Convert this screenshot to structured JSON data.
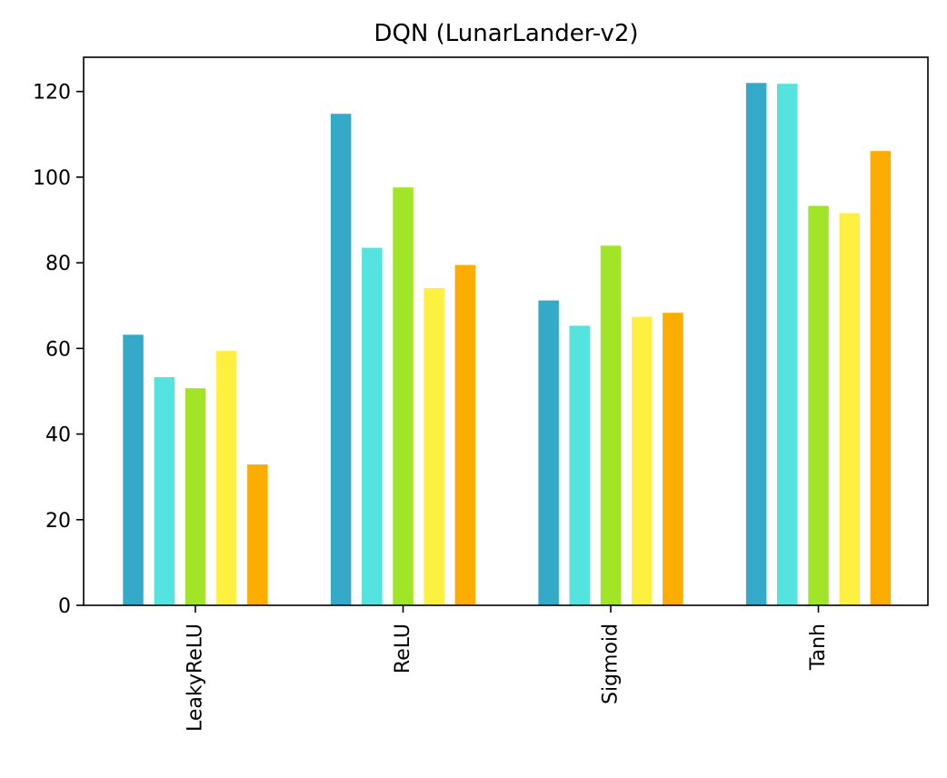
{
  "chart_data": {
    "type": "bar",
    "title": "DQN (LunarLander-v2)",
    "xlabel": "",
    "ylabel": "",
    "categories": [
      "LeakyReLU",
      "ReLU",
      "Sigmoid",
      "Tanh"
    ],
    "ylim": [
      0,
      128
    ],
    "yticks": [
      0,
      20,
      40,
      60,
      80,
      100,
      120
    ],
    "grid": false,
    "legend": "none",
    "series": [
      {
        "color": "#34a9c8",
        "values": [
          63.2,
          114.8,
          71.2,
          122.0
        ]
      },
      {
        "color": "#54e3de",
        "values": [
          53.3,
          83.5,
          65.3,
          121.8
        ]
      },
      {
        "color": "#a2e428",
        "values": [
          50.7,
          97.6,
          84.0,
          93.3
        ]
      },
      {
        "color": "#fdf041",
        "values": [
          59.4,
          74.1,
          67.4,
          91.6
        ]
      },
      {
        "color": "#fdac00",
        "values": [
          32.9,
          79.5,
          68.3,
          106.1
        ]
      }
    ]
  }
}
